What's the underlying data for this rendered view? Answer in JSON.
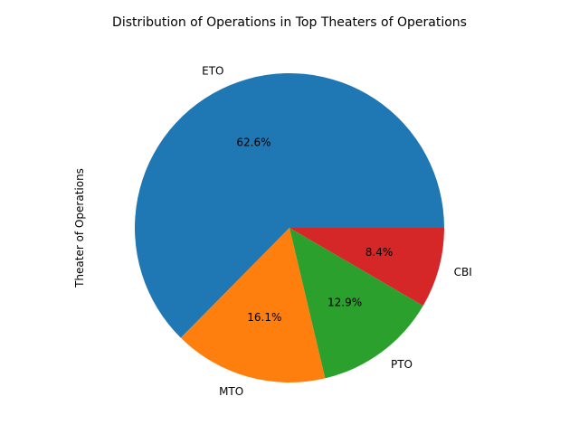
{
  "chart_data": {
    "type": "pie",
    "title": "Distribution of Operations in Top Theaters of Operations",
    "ylabel": "Theater of Operations",
    "categories": [
      "ETO",
      "MTO",
      "PTO",
      "CBI"
    ],
    "values": [
      62.6,
      16.1,
      12.9,
      8.4
    ],
    "percent_labels": [
      "62.6%",
      "16.1%",
      "12.9%",
      "8.4%"
    ],
    "colors": [
      "#1f77b4",
      "#ff7f0e",
      "#2ca02c",
      "#d62728"
    ],
    "start_angle_deg": 0,
    "direction": "counterclockwise"
  }
}
